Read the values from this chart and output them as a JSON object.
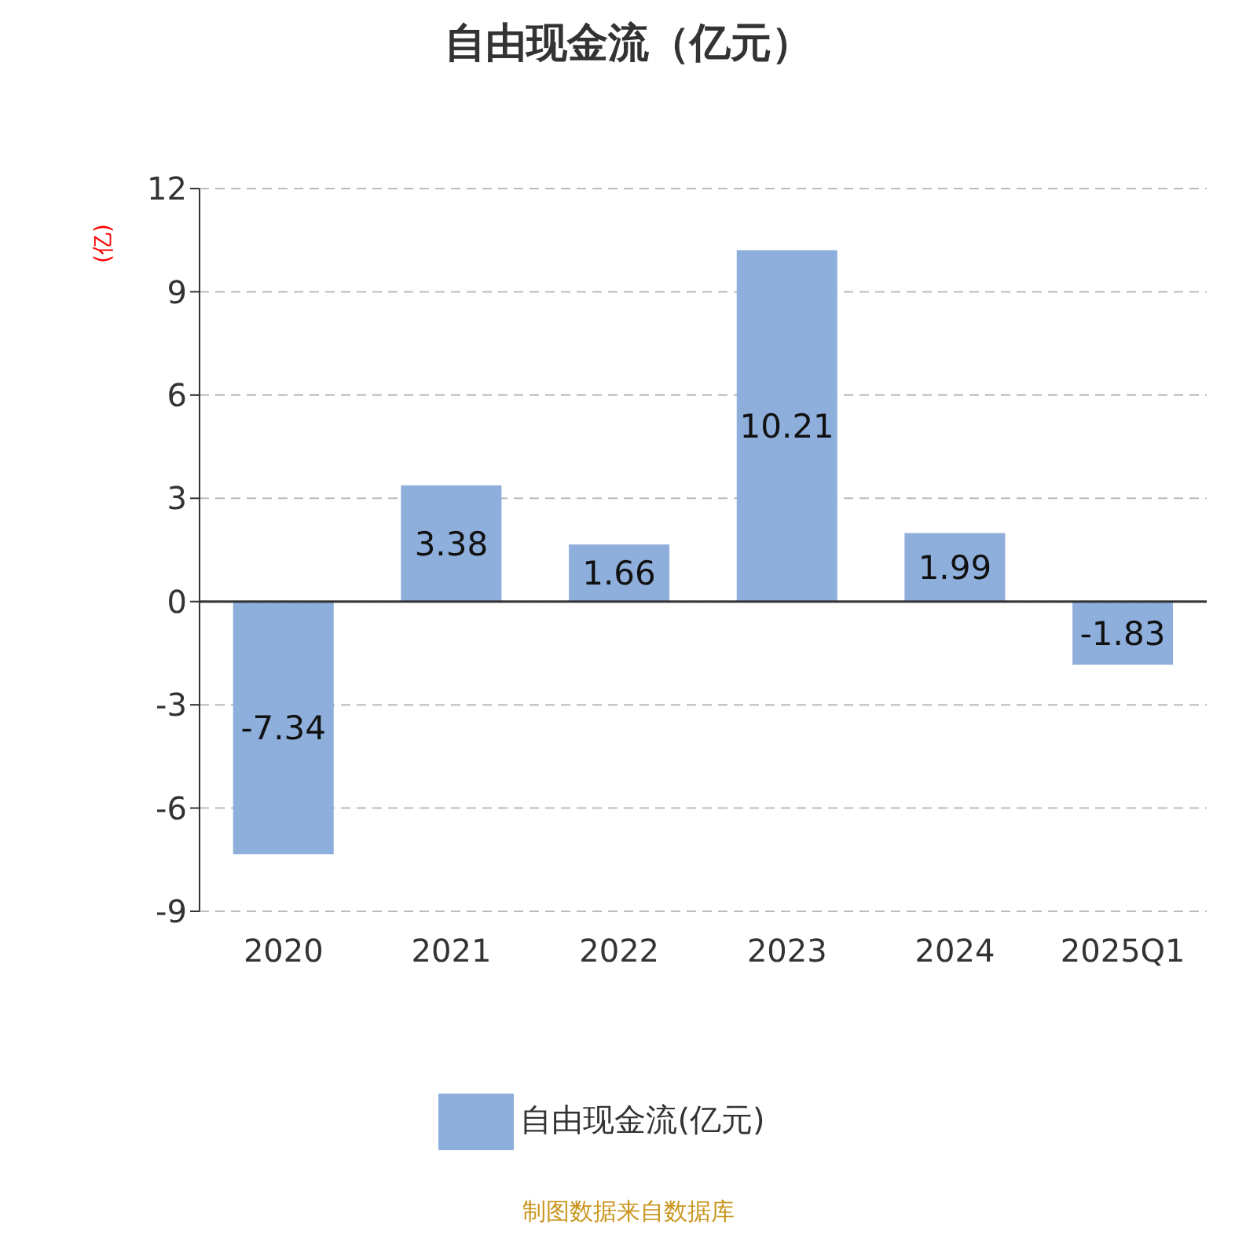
{
  "chart_data": {
    "type": "bar",
    "title": "自由现金流（亿元）",
    "ylabel": "(亿)",
    "categories": [
      "2020",
      "2021",
      "2022",
      "2023",
      "2024",
      "2025Q1"
    ],
    "series": [
      {
        "name": "自由现金流(亿元)",
        "color": "#8eaedb",
        "values": [
          -7.34,
          3.38,
          1.66,
          10.21,
          1.99,
          -1.83
        ]
      }
    ],
    "ylim": [
      -9,
      12
    ],
    "yticks": [
      -9,
      -6,
      -3,
      0,
      3,
      6,
      9,
      12
    ],
    "grid": "y",
    "legend": "bottom",
    "data_labels": true,
    "annotations": [
      "制图数据来自数据库"
    ]
  }
}
